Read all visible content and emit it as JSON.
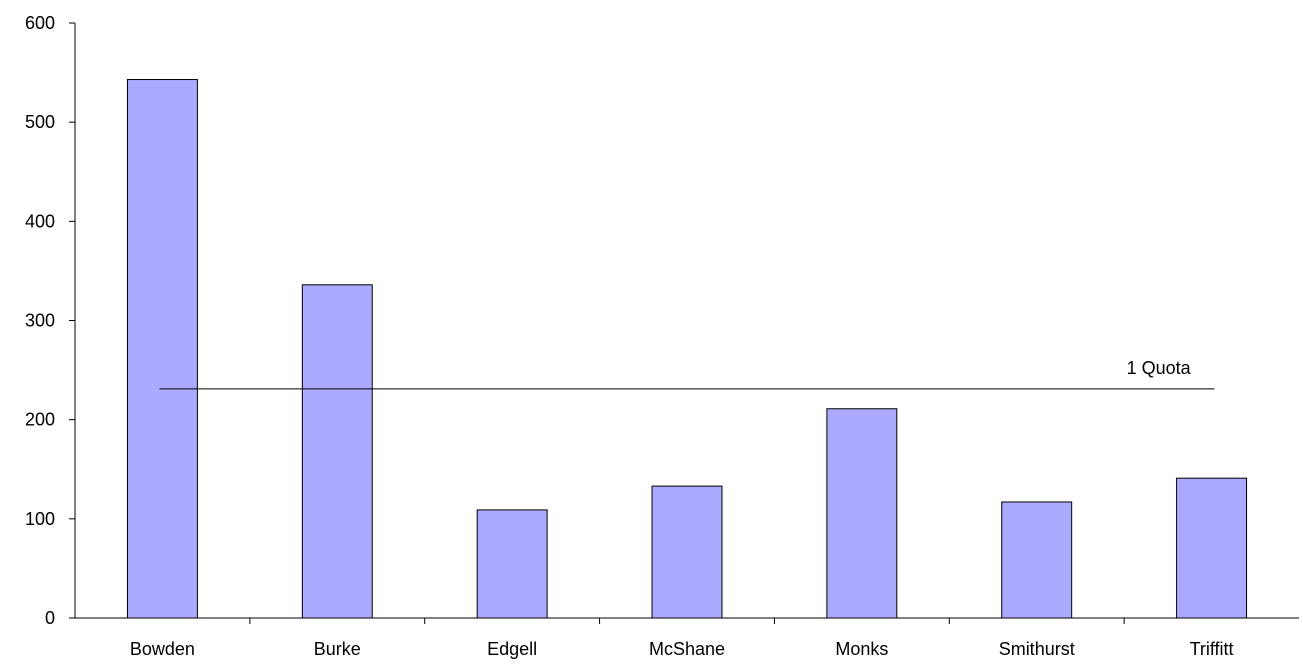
{
  "chart_data": {
    "type": "bar",
    "title": "",
    "xlabel": "",
    "ylabel": "",
    "categories": [
      "Bowden",
      "Burke",
      "Edgell",
      "McShane",
      "Monks",
      "Smithurst",
      "Triffitt"
    ],
    "values": [
      543,
      336,
      109,
      133,
      211,
      117,
      141
    ],
    "ylim": [
      0,
      600
    ],
    "yticks": [
      0,
      100,
      200,
      300,
      400,
      500,
      600
    ],
    "grid": false,
    "legend": "none",
    "bar_color": "#aaaaff",
    "bar_edge_color": "#000000",
    "reference_line": {
      "label": "1 Quota",
      "value": 231,
      "color": "#000000"
    }
  }
}
